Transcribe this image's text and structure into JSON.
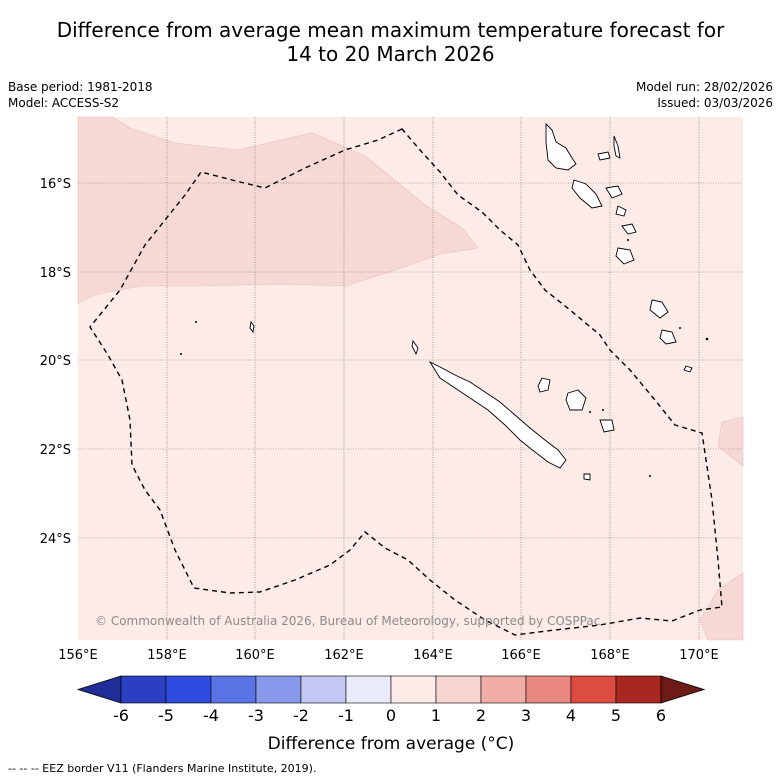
{
  "title": {
    "line1": "Difference from average mean maximum temperature forecast for",
    "line2": "14 to 20 March 2026"
  },
  "meta_left": {
    "base_period": "Base period: 1981-2018",
    "model": "Model: ACCESS-S2"
  },
  "meta_right": {
    "model_run": "Model run: 28/02/2026",
    "issued": "Issued: 03/03/2026"
  },
  "map": {
    "lat_labels": [
      "16°S",
      "18°S",
      "20°S",
      "22°S",
      "24°S"
    ],
    "lon_labels": [
      "156°E",
      "158°E",
      "160°E",
      "162°E",
      "164°E",
      "166°E",
      "168°E",
      "170°E"
    ],
    "copyright": "© Commonwealth of Australia 2026, Bureau of Meteorology, supported by COSPPac"
  },
  "colorbar": {
    "ticks": [
      "-6",
      "-5",
      "-4",
      "-3",
      "-2",
      "-1",
      "0",
      "1",
      "2",
      "3",
      "4",
      "5",
      "6"
    ],
    "label": "Difference from average (°C)",
    "colors": [
      "#1f2e99",
      "#2b3fc2",
      "#2f4ce0",
      "#5a74e6",
      "#8799eb",
      "#c3c9f3",
      "#e9ebfb",
      "#fdebe8",
      "#f6d4d0",
      "#f0aca7",
      "#e88880",
      "#dd4c41",
      "#a82821",
      "#6e1a16"
    ]
  },
  "footer": "--  --  -- EEZ border V11 (Flanders Marine Institute, 2019)."
}
